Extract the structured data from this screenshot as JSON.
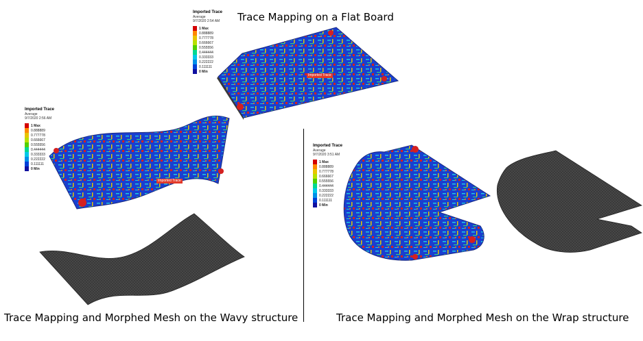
{
  "captions": {
    "top": "Trace Mapping on a Flat Board",
    "left": "Trace Mapping and Morphed Mesh on the Wavy structure",
    "right": "Trace Mapping and Morphed Mesh on the Wrap structure"
  },
  "legends": [
    {
      "title": "Imported Trace",
      "sub1": "Average",
      "sub2": "9/7/2020 2:54 AM",
      "labels": [
        "1 Max",
        "0.888889",
        "0.777778",
        "0.666667",
        "0.555556",
        "0.444444",
        "0.333333",
        "0.222222",
        "0.111111",
        "0 Min"
      ]
    },
    {
      "title": "Imported Trace",
      "sub1": "Average",
      "sub2": "9/7/2020 2:56 AM",
      "labels": [
        "1 Max",
        "0.888889",
        "0.777778",
        "0.666667",
        "0.555556",
        "0.444444",
        "0.333333",
        "0.222222",
        "0.111111",
        "0 Min"
      ]
    },
    {
      "title": "Imported Trace",
      "sub1": "Average",
      "sub2": "9/7/2020 3:51 AM",
      "labels": [
        "1 Max",
        "0.888889",
        "0.777778",
        "0.666667",
        "0.555556",
        "0.444444",
        "0.333333",
        "0.222222",
        "0.111111",
        "0 Min"
      ]
    }
  ],
  "legend_colors": [
    "#d40000",
    "#ff8800",
    "#e8c400",
    "#b8e000",
    "#50d000",
    "#00d890",
    "#00c8e8",
    "#0090e8",
    "#0040d8",
    "#1010a0"
  ],
  "tags": {
    "flat": "Imported Trace",
    "wavy": "Imported Trace"
  }
}
